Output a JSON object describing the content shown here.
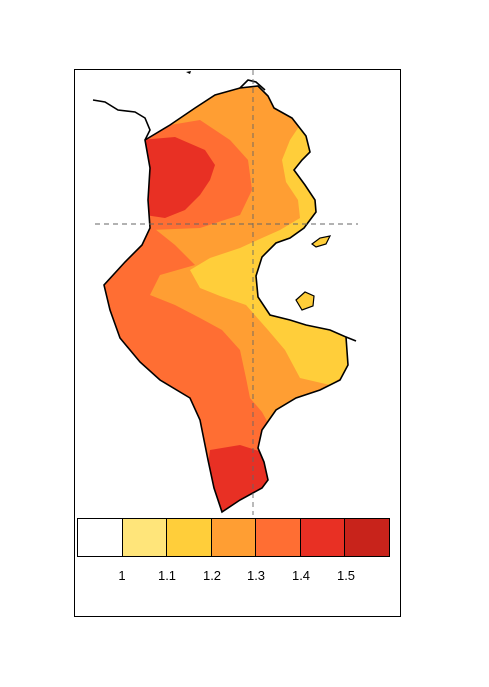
{
  "map": {
    "region": "Tunisia",
    "graticule": "dashed"
  },
  "legend": {
    "colors": [
      "#ffffff",
      "#ffe57a",
      "#ffce3a",
      "#ff9e33",
      "#ff6e33",
      "#e83024",
      "#c8231b"
    ],
    "ticks": [
      "1",
      "1.1",
      "1.2",
      "1.3",
      "1.4",
      "1.5"
    ]
  }
}
